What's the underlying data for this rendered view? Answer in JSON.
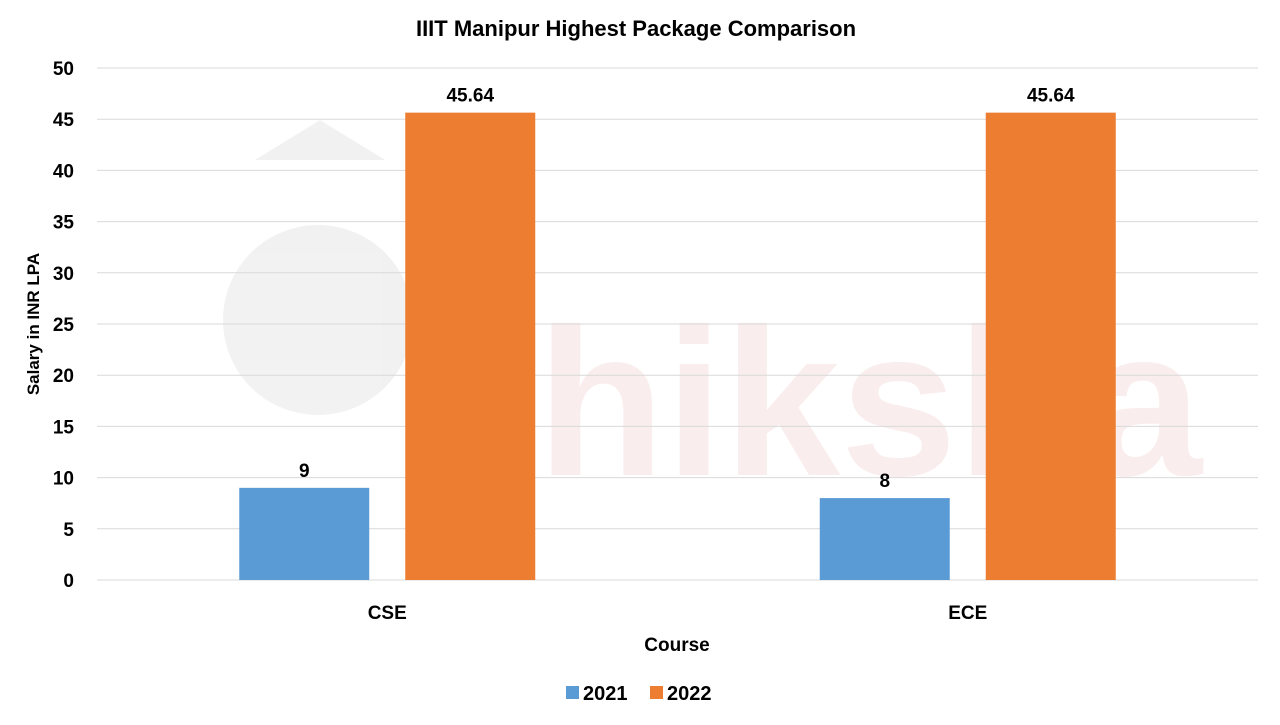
{
  "chart_data": {
    "type": "bar",
    "title": "IIIT Manipur Highest Package Comparison",
    "xlabel": "Course",
    "ylabel": "Salary in INR LPA",
    "categories": [
      "CSE",
      "ECE"
    ],
    "series": [
      {
        "name": "2021",
        "values": [
          9,
          8
        ],
        "color": "#5B9BD5"
      },
      {
        "name": "2022",
        "values": [
          45.64,
          45.64
        ],
        "color": "#ED7D31"
      }
    ],
    "ylim": [
      0,
      50
    ],
    "yticks": [
      0,
      5,
      10,
      15,
      20,
      25,
      30,
      35,
      40,
      45,
      50
    ],
    "grid": true,
    "legend": "bottom",
    "data_labels": true,
    "watermark": "shiksha"
  }
}
